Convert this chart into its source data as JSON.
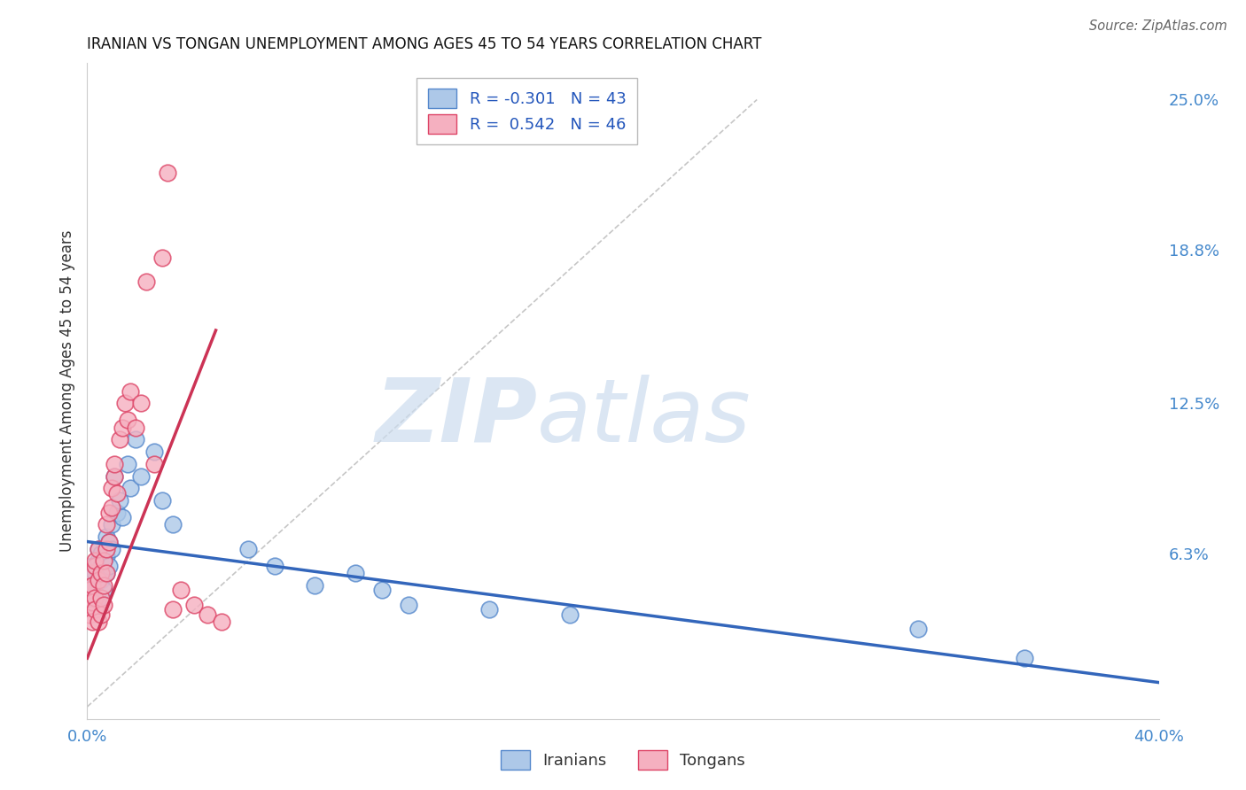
{
  "title": "IRANIAN VS TONGAN UNEMPLOYMENT AMONG AGES 45 TO 54 YEARS CORRELATION CHART",
  "source": "Source: ZipAtlas.com",
  "ylabel": "Unemployment Among Ages 45 to 54 years",
  "xlim": [
    0.0,
    0.4
  ],
  "ylim": [
    -0.005,
    0.265
  ],
  "yticks": [
    0.0,
    0.063,
    0.125,
    0.188,
    0.25
  ],
  "ytick_labels": [
    "",
    "6.3%",
    "12.5%",
    "18.8%",
    "25.0%"
  ],
  "xticks": [
    0.0,
    0.1,
    0.2,
    0.3,
    0.4
  ],
  "xtick_labels": [
    "0.0%",
    "",
    "",
    "",
    "40.0%"
  ],
  "background_color": "#ffffff",
  "grid_color": "#c8c8d0",
  "watermark_zip": "ZIP",
  "watermark_atlas": "atlas",
  "iranians_color": "#adc8e8",
  "tongans_color": "#f5b0c0",
  "iranians_edge_color": "#5588cc",
  "tongans_edge_color": "#dd4466",
  "trend_iranian_color": "#3366bb",
  "trend_tongan_color": "#cc3355",
  "diagonal_color": "#c0c0c0",
  "legend_r_iranian": "-0.301",
  "legend_n_iranian": "43",
  "legend_r_tongan": "0.542",
  "legend_n_tongan": "46",
  "iranians_x": [
    0.001,
    0.002,
    0.002,
    0.003,
    0.003,
    0.003,
    0.004,
    0.004,
    0.004,
    0.005,
    0.005,
    0.005,
    0.006,
    0.006,
    0.006,
    0.007,
    0.007,
    0.007,
    0.008,
    0.008,
    0.009,
    0.009,
    0.01,
    0.011,
    0.012,
    0.013,
    0.015,
    0.016,
    0.018,
    0.02,
    0.025,
    0.028,
    0.032,
    0.06,
    0.07,
    0.085,
    0.1,
    0.11,
    0.12,
    0.15,
    0.18,
    0.31,
    0.35
  ],
  "iranians_y": [
    0.048,
    0.052,
    0.058,
    0.044,
    0.05,
    0.055,
    0.06,
    0.045,
    0.065,
    0.052,
    0.058,
    0.063,
    0.055,
    0.048,
    0.06,
    0.062,
    0.07,
    0.055,
    0.058,
    0.068,
    0.075,
    0.065,
    0.095,
    0.08,
    0.085,
    0.078,
    0.1,
    0.09,
    0.11,
    0.095,
    0.105,
    0.085,
    0.075,
    0.065,
    0.058,
    0.05,
    0.055,
    0.048,
    0.042,
    0.04,
    0.038,
    0.032,
    0.02
  ],
  "tongans_x": [
    0.001,
    0.001,
    0.001,
    0.002,
    0.002,
    0.002,
    0.002,
    0.003,
    0.003,
    0.003,
    0.003,
    0.004,
    0.004,
    0.004,
    0.005,
    0.005,
    0.005,
    0.006,
    0.006,
    0.006,
    0.007,
    0.007,
    0.007,
    0.008,
    0.008,
    0.009,
    0.009,
    0.01,
    0.01,
    0.011,
    0.012,
    0.013,
    0.014,
    0.015,
    0.016,
    0.018,
    0.02,
    0.022,
    0.025,
    0.028,
    0.03,
    0.032,
    0.035,
    0.04,
    0.045,
    0.05
  ],
  "tongans_y": [
    0.042,
    0.048,
    0.038,
    0.055,
    0.043,
    0.05,
    0.035,
    0.058,
    0.045,
    0.04,
    0.06,
    0.052,
    0.035,
    0.065,
    0.055,
    0.045,
    0.038,
    0.05,
    0.06,
    0.042,
    0.065,
    0.075,
    0.055,
    0.08,
    0.068,
    0.09,
    0.082,
    0.095,
    0.1,
    0.088,
    0.11,
    0.115,
    0.125,
    0.118,
    0.13,
    0.115,
    0.125,
    0.175,
    0.1,
    0.185,
    0.22,
    0.04,
    0.048,
    0.042,
    0.038,
    0.035
  ],
  "iran_trend_x0": 0.0,
  "iran_trend_x1": 0.4,
  "iran_trend_y0": 0.068,
  "iran_trend_y1": 0.01,
  "tong_trend_x0": 0.0,
  "tong_trend_x1": 0.048,
  "tong_trend_y0": 0.02,
  "tong_trend_y1": 0.155
}
